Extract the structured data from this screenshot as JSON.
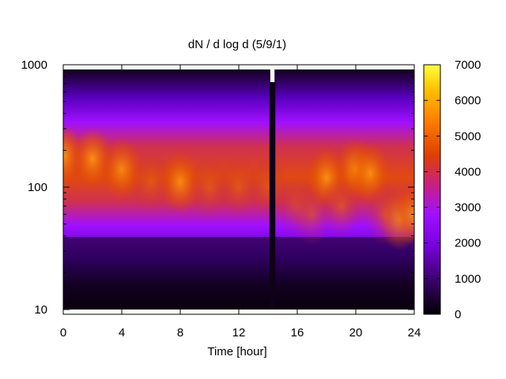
{
  "chart_data": {
    "type": "heatmap",
    "title": "dN / d log d (5/9/1)",
    "xlabel": "Time [hour]",
    "ylabel": "",
    "xlim": [
      0,
      24
    ],
    "ylim": [
      10,
      1000
    ],
    "y_scale": "log",
    "x_ticks": [
      "0",
      "4",
      "8",
      "12",
      "16",
      "20",
      "24"
    ],
    "y_ticks": [
      "10",
      "100",
      "1000"
    ],
    "colorbar": {
      "range": [
        0,
        7000
      ],
      "ticks": [
        "0",
        "1000",
        "2000",
        "3000",
        "4000",
        "5000",
        "6000",
        "7000"
      ],
      "colors": [
        "#000000",
        "#3c0070",
        "#7a00e0",
        "#a010ff",
        "#c82080",
        "#e04000",
        "#ff8000",
        "#ffc000",
        "#ffff40"
      ]
    },
    "grid": false,
    "legend": "colorbar-right",
    "data_gap": {
      "x_range": [
        14.1,
        14.5
      ],
      "y_max": 1000
    },
    "peak_profile": {
      "x": [
        0,
        2,
        4,
        6,
        8,
        10,
        12,
        14,
        16,
        17,
        18,
        19,
        20,
        21,
        22,
        23,
        24
      ],
      "peak_diameter": [
        180,
        170,
        140,
        110,
        110,
        100,
        100,
        100,
        70,
        60,
        120,
        70,
        140,
        130,
        60,
        55,
        60
      ],
      "peak_value": [
        5500,
        5200,
        4500,
        3800,
        4500,
        3600,
        4000,
        3800,
        2800,
        3500,
        4800,
        4200,
        5000,
        4800,
        4200,
        4600,
        5000
      ]
    }
  }
}
